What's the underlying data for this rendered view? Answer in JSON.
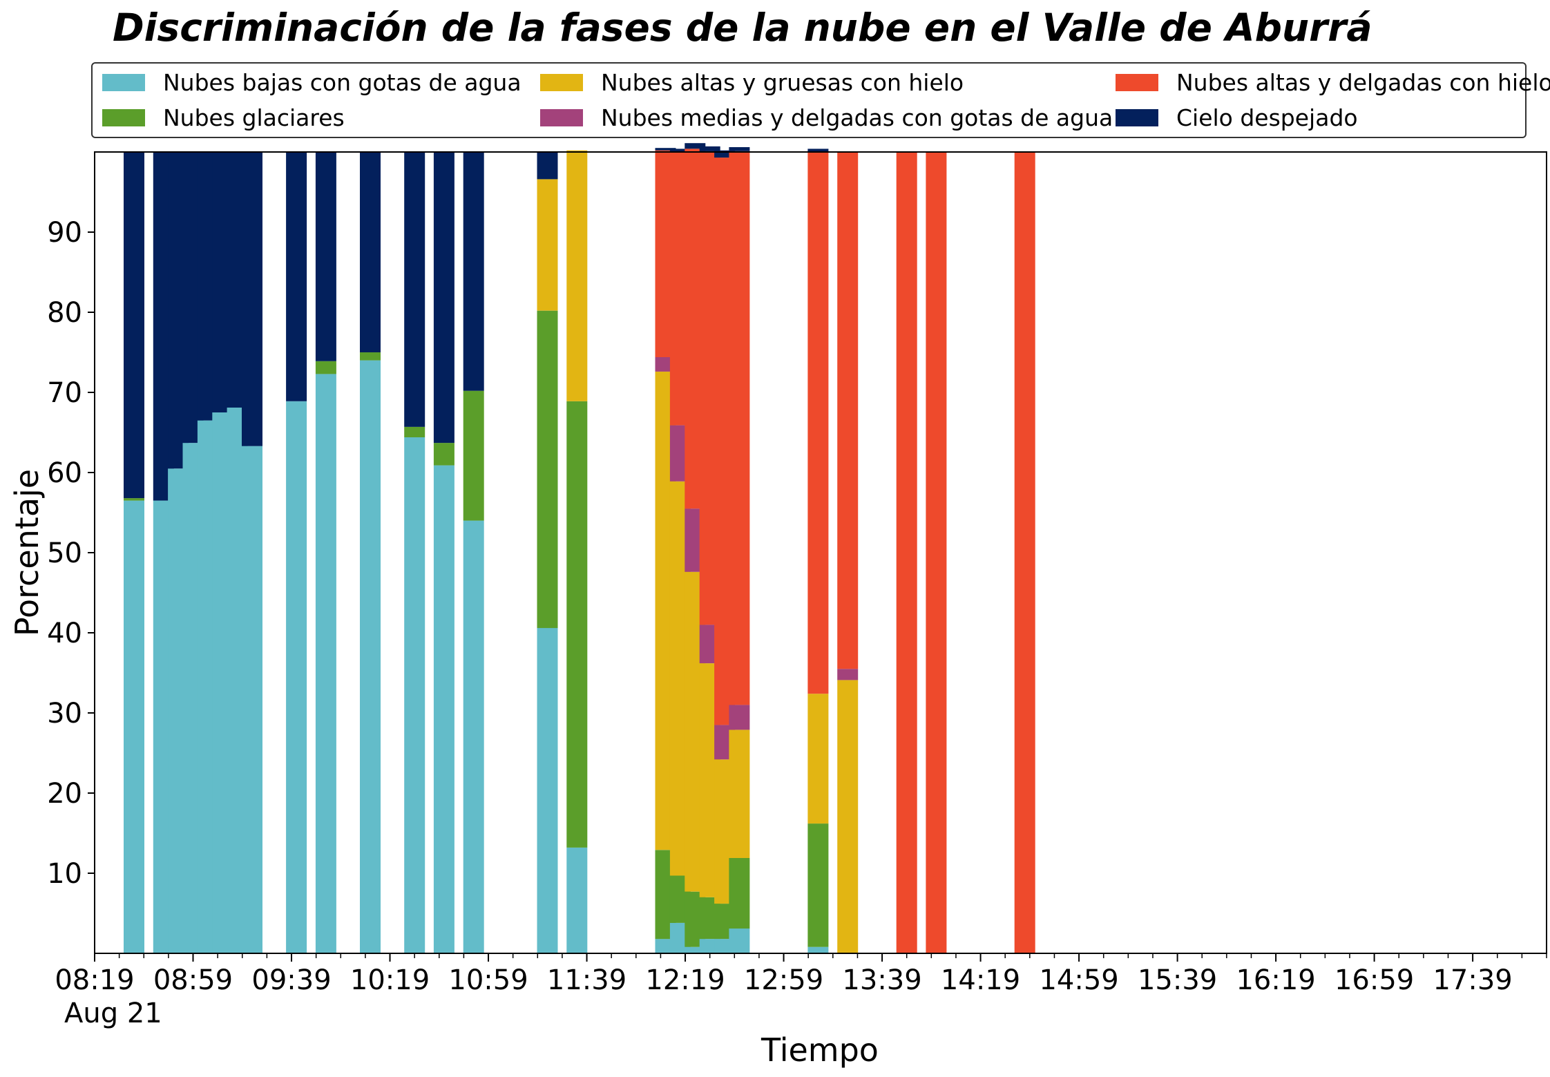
{
  "chart_data": {
    "type": "bar",
    "stacked": true,
    "title": "Discriminación de la fases de la nube en el Valle de Aburrá",
    "xlabel": "Tiempo",
    "ylabel": "Porcentaje",
    "ylim": [
      0,
      100
    ],
    "yticks": [
      10,
      20,
      30,
      40,
      50,
      60,
      70,
      80,
      90
    ],
    "xlim": [
      "08:19",
      "18:09"
    ],
    "xtick_labels": [
      "08:19",
      "08:59",
      "09:39",
      "10:19",
      "10:59",
      "11:39",
      "12:19",
      "12:59",
      "13:39",
      "14:19",
      "14:59",
      "15:39",
      "16:19",
      "16:59",
      "17:39"
    ],
    "x_date_label": "Aug 21",
    "grid": false,
    "legend_position": "top",
    "x": [
      "08:35",
      "08:47",
      "08:53",
      "08:59",
      "09:05",
      "09:11",
      "09:17",
      "09:23",
      "09:41",
      "09:53",
      "10:11",
      "10:29",
      "10:41",
      "10:53",
      "11:23",
      "11:35",
      "11:47",
      "11:59",
      "12:11",
      "12:17",
      "12:23",
      "12:29",
      "12:35",
      "12:41",
      "13:13",
      "13:25",
      "13:49",
      "14:01",
      "14:37"
    ],
    "series": [
      {
        "name": "Nubes bajas con gotas de agua",
        "color": "#63bcc9",
        "values": [
          56.5,
          56.5,
          60.5,
          63.7,
          66.5,
          67.5,
          68.1,
          63.3,
          68.9,
          72.3,
          74.0,
          64.4,
          60.9,
          54.0,
          40.6,
          13.2,
          0,
          0,
          1.8,
          3.8,
          0.8,
          1.8,
          1.8,
          3.1,
          0.8,
          0,
          0,
          0,
          0
        ]
      },
      {
        "name": "Nubes glaciares",
        "color": "#5b9e2a",
        "values": [
          0.3,
          0,
          0,
          0,
          0,
          0,
          0,
          0,
          0,
          1.6,
          1.0,
          1.3,
          2.8,
          16.2,
          39.6,
          55.7,
          0,
          0,
          11.1,
          5.9,
          6.9,
          5.2,
          4.4,
          8.8,
          15.4,
          0,
          0,
          0,
          0
        ]
      },
      {
        "name": "Nubes altas y gruesas con hielo",
        "color": "#e2b513",
        "values": [
          0,
          0,
          0,
          0,
          0,
          0,
          0,
          0,
          0,
          0,
          0,
          0,
          0,
          0,
          16.4,
          31.3,
          0,
          0,
          59.7,
          49.2,
          39.9,
          29.2,
          18.0,
          16.0,
          16.2,
          34.1,
          0,
          0,
          0
        ]
      },
      {
        "name": "Nubes medias y delgadas con gotas de agua",
        "color": "#a3427b",
        "values": [
          0,
          0,
          0,
          0,
          0,
          0,
          0,
          0,
          0,
          0,
          0,
          0,
          0,
          0,
          0,
          0,
          0,
          0,
          1.8,
          7.0,
          7.9,
          4.8,
          4.3,
          3.1,
          0,
          1.4,
          0,
          0,
          0
        ]
      },
      {
        "name": "Nubes altas y delgadas con hielo",
        "color": "#ee4a2c",
        "values": [
          0,
          0,
          0,
          0,
          0,
          0,
          0,
          0,
          0,
          0,
          0,
          0,
          0,
          0,
          0,
          0,
          0,
          0,
          25.8,
          34.1,
          44.9,
          59.1,
          70.8,
          69.1,
          67.6,
          64.5,
          100,
          100,
          100
        ]
      },
      {
        "name": "Cielo despejado",
        "color": "#03205c",
        "values": [
          43.2,
          43.5,
          39.5,
          36.3,
          33.5,
          32.5,
          31.9,
          36.7,
          31.1,
          26.1,
          25.0,
          34.3,
          36.3,
          29.8,
          3.4,
          0,
          0,
          0,
          0.3,
          0.4,
          0.7,
          0.6,
          0.9,
          0.5,
          0.4,
          0,
          0,
          0,
          0
        ]
      }
    ]
  }
}
